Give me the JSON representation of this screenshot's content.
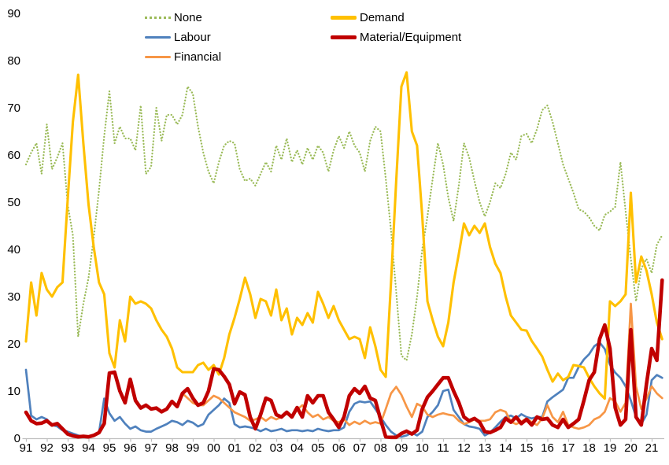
{
  "chart_data": {
    "type": "line",
    "title": "",
    "xlabel": "",
    "ylabel": "",
    "ylim": [
      0,
      90
    ],
    "y_ticks": [
      0,
      10,
      20,
      30,
      40,
      50,
      60,
      70,
      80,
      90
    ],
    "x_tick_labels": [
      "91",
      "92",
      "93",
      "94",
      "95",
      "96",
      "97",
      "98",
      "99",
      "00",
      "01",
      "02",
      "03",
      "04",
      "05",
      "06",
      "07",
      "08",
      "09",
      "10",
      "11",
      "12",
      "13",
      "14",
      "15",
      "16",
      "17",
      "18",
      "19",
      "20",
      "21"
    ],
    "frequency": "quarterly",
    "x_start": "1991Q1",
    "x_end": "2021Q3",
    "grid": false,
    "legend_position": "top",
    "axis_color": "#bfbfbf",
    "text_color": "#000000",
    "series": [
      {
        "name": "None",
        "color": "#9bbb59",
        "style": "dotted",
        "width": 2.3,
        "values": [
          58,
          60.5,
          62.5,
          56,
          66.5,
          57,
          59.5,
          62.5,
          49.5,
          43,
          21.5,
          28.5,
          34,
          42.5,
          52.5,
          64,
          73.5,
          62.5,
          66,
          63.5,
          63.5,
          61,
          70.5,
          56,
          57.5,
          70,
          63,
          68.5,
          68.5,
          66.5,
          68.5,
          74.5,
          73,
          66,
          60.5,
          56.5,
          54,
          58.5,
          62,
          63,
          62.5,
          57,
          54.5,
          55,
          53.5,
          56,
          58.5,
          56.5,
          62,
          59,
          63.5,
          58.5,
          61,
          58,
          61.5,
          59,
          62,
          60.5,
          56.5,
          61,
          64,
          61.5,
          65,
          62,
          60.5,
          56.5,
          63,
          66,
          65,
          55,
          44,
          31,
          17.5,
          16.5,
          22,
          30,
          40,
          47,
          55,
          62.5,
          58,
          51,
          46,
          53.5,
          62.5,
          59.5,
          54.5,
          50,
          47,
          50,
          54,
          53,
          56,
          60.5,
          59,
          64,
          64.5,
          62.5,
          65.5,
          69.5,
          70.5,
          67,
          62.5,
          58,
          55,
          52,
          48.5,
          48,
          46.8,
          45,
          44,
          47.3,
          48,
          49,
          58.5,
          48,
          38,
          29,
          36,
          38,
          35,
          41,
          43
        ]
      },
      {
        "name": "Labour",
        "color": "#4f81bd",
        "style": "solid",
        "width": 2.7,
        "values": [
          14.5,
          4.8,
          4,
          4.5,
          4,
          2.8,
          2.5,
          1.7,
          1.4,
          1,
          0.6,
          0.3,
          0.3,
          0.5,
          1.2,
          8.4,
          5.3,
          3.7,
          4.5,
          3.1,
          2,
          2.5,
          1.7,
          1.4,
          1.4,
          2,
          2.5,
          3,
          3.7,
          3.4,
          2.8,
          3.7,
          3.3,
          2.5,
          3,
          5,
          6,
          7,
          8.4,
          7.5,
          3,
          2.3,
          2.5,
          2.3,
          2,
          1.5,
          2,
          1.5,
          1.7,
          2,
          1.5,
          1.7,
          1.7,
          1.5,
          1.7,
          1.5,
          2,
          1.7,
          1.5,
          1.7,
          1.7,
          2.3,
          5.6,
          7.3,
          7.8,
          7.6,
          7.8,
          6.2,
          4.5,
          2.8,
          1.4,
          0.6,
          0.3,
          0.6,
          1.2,
          0.6,
          1.4,
          4.5,
          5.6,
          7,
          10,
          10.3,
          6,
          4.5,
          3,
          2.5,
          2.3,
          2,
          0.6,
          1.2,
          2.3,
          3.5,
          4.5,
          4.8,
          4.2,
          5.1,
          4.5,
          4.2,
          4.5,
          4.5,
          7.8,
          8.7,
          9.5,
          10.3,
          12.8,
          12.8,
          15.1,
          16.7,
          17.8,
          19.5,
          20.3,
          18.9,
          15.6,
          13.9,
          12.8,
          11,
          8,
          4.5,
          3,
          5,
          12.3,
          13.4,
          12.8
        ]
      },
      {
        "name": "Financial",
        "color": "#f79646",
        "style": "solid",
        "width": 2.7,
        "values": [
          null,
          null,
          null,
          null,
          null,
          null,
          null,
          null,
          null,
          null,
          null,
          null,
          null,
          null,
          null,
          null,
          null,
          null,
          null,
          null,
          null,
          null,
          null,
          null,
          null,
          null,
          null,
          null,
          null,
          null,
          9.5,
          8.5,
          7.5,
          7,
          7,
          8,
          9,
          8.5,
          7.5,
          6.5,
          5.5,
          5,
          4.5,
          3.7,
          4,
          4.5,
          3.7,
          4.5,
          4,
          4.5,
          5.5,
          4.5,
          6,
          7,
          5.5,
          4.5,
          5,
          4,
          4.5,
          3.7,
          3.4,
          4,
          2.8,
          3.5,
          3,
          3.7,
          3.1,
          3.4,
          3.1,
          6.2,
          9.5,
          10.9,
          9.2,
          6.7,
          4.5,
          7.3,
          6.7,
          5,
          4.5,
          5,
          5.3,
          5,
          4.8,
          3.7,
          3,
          3.4,
          4,
          3.7,
          3.7,
          4,
          5.5,
          6,
          5.6,
          3.5,
          3,
          3.5,
          4.2,
          3.4,
          2.8,
          4.2,
          7,
          4.5,
          3.4,
          5.6,
          2.8,
          2.3,
          2,
          2.3,
          2.8,
          4,
          4.5,
          5.6,
          8.5,
          7.8,
          5.6,
          7.5,
          28.5,
          11,
          6.2,
          8.4,
          11,
          9.5,
          8.5
        ]
      },
      {
        "name": "Demand",
        "color": "#ffc000",
        "style": "solid",
        "width": 3.1,
        "values": [
          20.5,
          33,
          26,
          35,
          31.5,
          30,
          32,
          33,
          50.5,
          67,
          77,
          62.5,
          49.5,
          40.5,
          33,
          30.5,
          18,
          15,
          25,
          20.5,
          30,
          28.5,
          29,
          28.5,
          27.5,
          25,
          23,
          21.5,
          19,
          15,
          14,
          14,
          14,
          15.5,
          16,
          14.5,
          15.5,
          13.5,
          17,
          22,
          25.5,
          29.5,
          34,
          30.5,
          25.5,
          29.5,
          29,
          26,
          31.5,
          25,
          27.5,
          22,
          25.5,
          24,
          26.5,
          24.5,
          31,
          28.5,
          25.5,
          28,
          25,
          23,
          21,
          21.5,
          21,
          17,
          23.5,
          19.5,
          14.5,
          13,
          33,
          54.5,
          74.5,
          77.5,
          65,
          62,
          47,
          29,
          25,
          21.5,
          19.5,
          24.5,
          33,
          39,
          45.5,
          43,
          45,
          43.5,
          45.5,
          40.5,
          37,
          35,
          30,
          26,
          24.5,
          23,
          22.8,
          20.6,
          19,
          17.3,
          14.5,
          12,
          13.7,
          12.3,
          13,
          15.5,
          15.3,
          15,
          12.8,
          11,
          9.5,
          8.4,
          29,
          28,
          29,
          30.5,
          52,
          33,
          38.5,
          35.5,
          30.5,
          24.5,
          21
        ]
      },
      {
        "name": "Material/Equipment",
        "color": "#c00000",
        "style": "solid",
        "width": 4.6,
        "values": [
          5.5,
          3.7,
          3.1,
          3.2,
          3.7,
          2.8,
          3.1,
          2,
          0.9,
          0.5,
          0.3,
          0.4,
          0.3,
          0.6,
          1.2,
          3.1,
          13.8,
          14,
          10,
          7.5,
          12.5,
          8,
          6.4,
          7,
          6.2,
          6.4,
          5.6,
          6.2,
          7.8,
          6.7,
          9.5,
          10.5,
          8.5,
          7,
          7.5,
          10,
          14.7,
          14.5,
          13.1,
          11.4,
          7.3,
          9.8,
          9.2,
          4.5,
          2,
          5,
          8.5,
          8,
          5,
          4.5,
          5.5,
          4.5,
          6.5,
          4.5,
          9,
          7.5,
          9,
          9,
          5.5,
          4,
          2.3,
          4.5,
          9,
          10.5,
          9.5,
          11,
          8.5,
          8,
          4,
          0.3,
          0.2,
          0.2,
          1,
          1.5,
          0.9,
          1.7,
          6.2,
          8.7,
          10,
          11.4,
          12.8,
          12.8,
          10,
          7.6,
          4.5,
          3.7,
          4.2,
          3.4,
          1.4,
          1.2,
          1.7,
          2.3,
          4.2,
          3.4,
          4.5,
          3.1,
          4,
          2.8,
          4.5,
          4,
          4.2,
          2.8,
          2.3,
          4,
          2.3,
          3.1,
          4,
          8,
          12.3,
          14,
          21,
          24,
          19,
          6.5,
          2.8,
          4,
          23,
          4.5,
          2.8,
          11.5,
          19,
          16.5,
          33.5
        ]
      }
    ]
  }
}
